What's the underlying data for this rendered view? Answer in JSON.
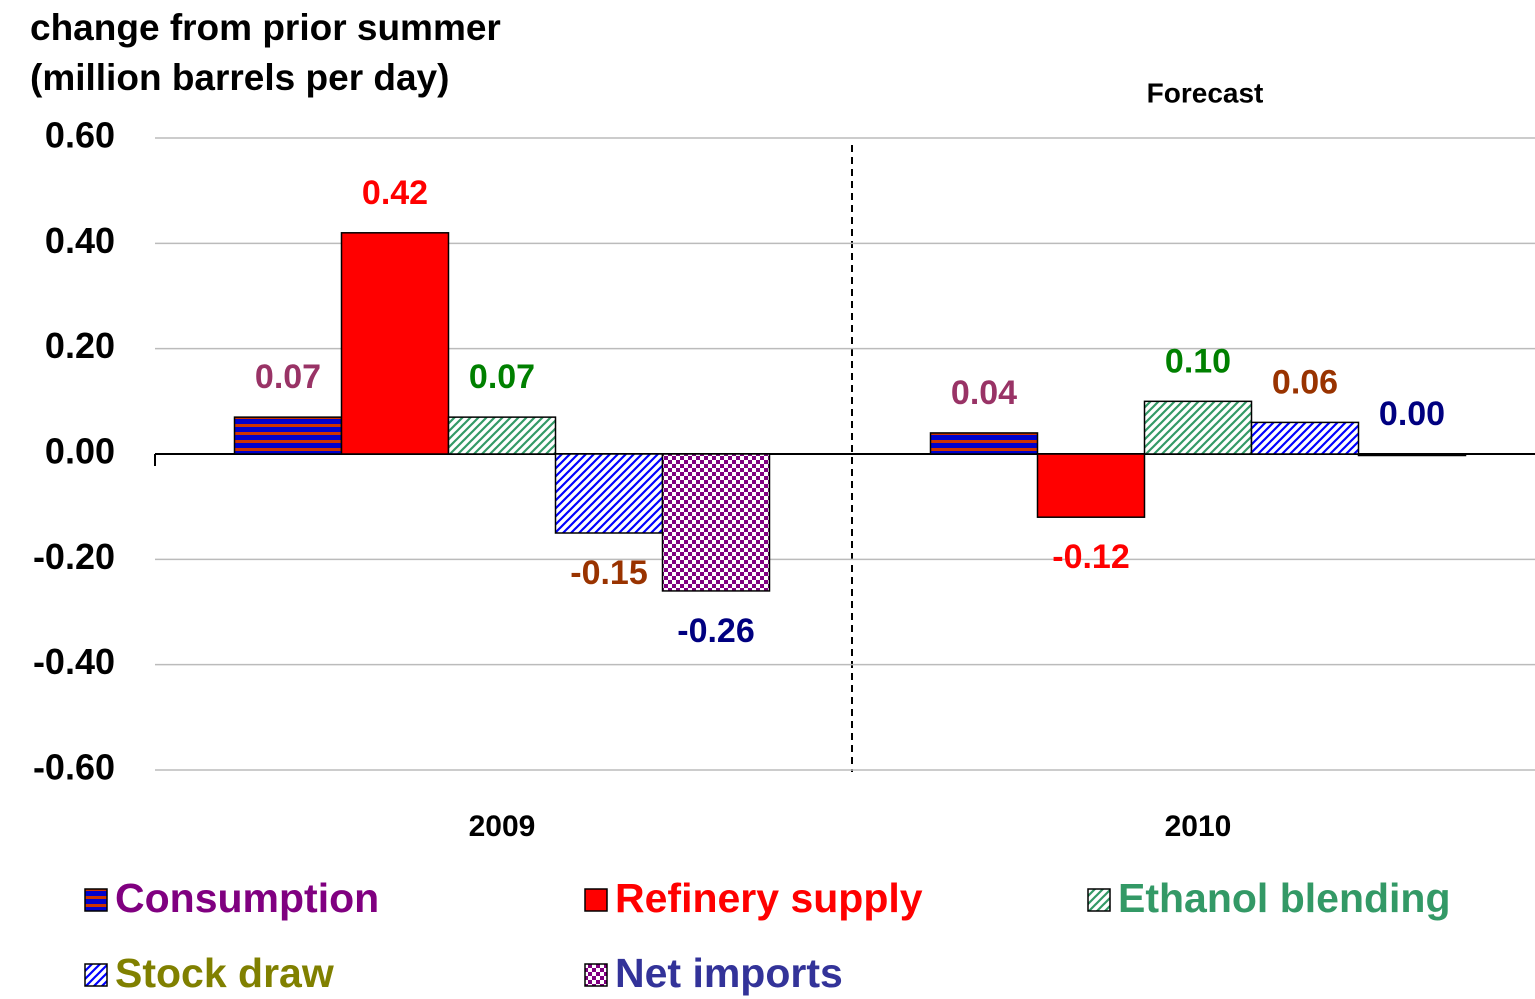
{
  "chart_data": {
    "type": "bar",
    "ylabel": [
      "change from prior summer",
      "(million barrels per day)"
    ],
    "annotation": "Forecast",
    "categories": [
      "2009",
      "2010"
    ],
    "series": [
      {
        "name": "Consumption",
        "color": "#0000cc",
        "pattern": "hstripe",
        "pattern_color": "#cc3300",
        "label_color": "#993366",
        "legend_color": "#800080",
        "values": [
          0.07,
          0.04
        ],
        "value_labels": [
          "0.07",
          "0.04"
        ]
      },
      {
        "name": "Refinery supply",
        "color": "#ff0000",
        "pattern": "solid",
        "pattern_color": "#ff0000",
        "label_color": "#ff0000",
        "legend_color": "#ff0000",
        "values": [
          0.42,
          -0.12
        ],
        "value_labels": [
          "0.42",
          "-0.12"
        ]
      },
      {
        "name": "Ethanol blending",
        "color": "#ffffff",
        "pattern": "diag",
        "pattern_color": "#339966",
        "label_color": "#008000",
        "legend_color": "#339966",
        "values": [
          0.07,
          0.1
        ],
        "value_labels": [
          "0.07",
          "0.10"
        ]
      },
      {
        "name": "Stock draw",
        "color": "#ffffff",
        "pattern": "diag",
        "pattern_color": "#0000ff",
        "label_color": "#993300",
        "legend_color": "#808000",
        "values": [
          -0.15,
          0.06
        ],
        "value_labels": [
          "-0.15",
          "0.06"
        ]
      },
      {
        "name": "Net imports",
        "color": "#ffffff",
        "pattern": "checker",
        "pattern_color": "#800080",
        "label_color": "#000080",
        "legend_color": "#333399",
        "values": [
          -0.26,
          0.0
        ],
        "value_labels": [
          "-0.26",
          "0.00"
        ]
      }
    ],
    "ylim": [
      -0.6,
      0.6
    ],
    "yticks": [
      {
        "value": -0.6,
        "label": "-0.60"
      },
      {
        "value": -0.4,
        "label": "-0.40"
      },
      {
        "value": -0.2,
        "label": "-0.20"
      },
      {
        "value": 0,
        "label": "0.00"
      },
      {
        "value": 0.2,
        "label": "0.20"
      },
      {
        "value": 0.4,
        "label": "0.40"
      },
      {
        "value": 0.6,
        "label": "0.60"
      }
    ],
    "grid": true
  }
}
